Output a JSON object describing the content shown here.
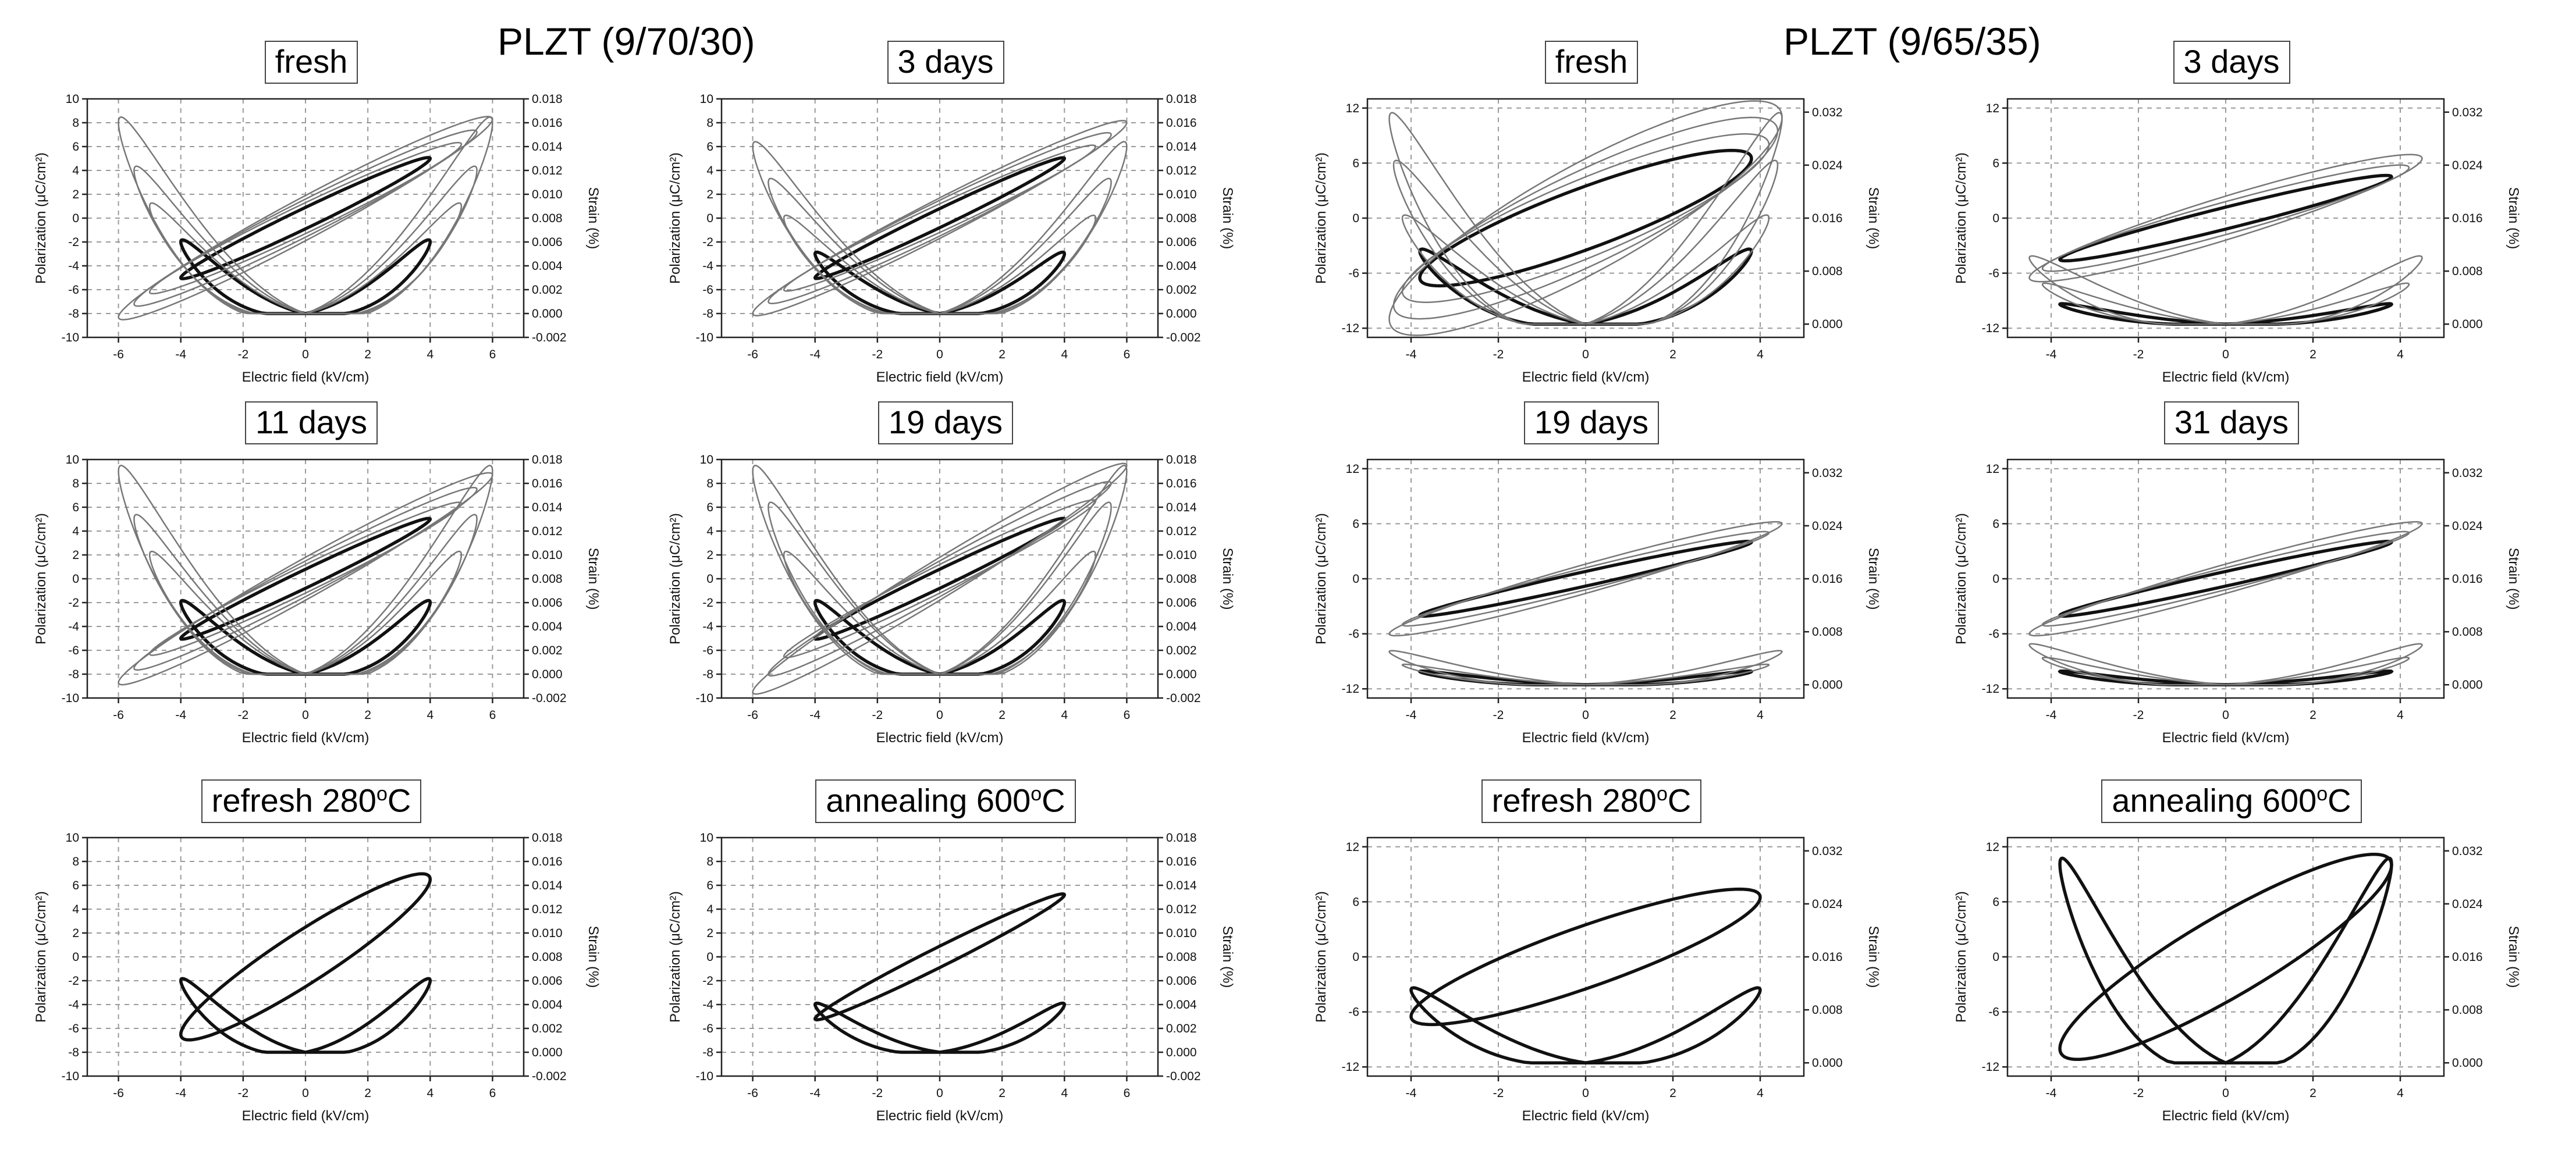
{
  "groups": {
    "left": "PLZT (9/70/30)",
    "right": "PLZT (9/65/35)"
  },
  "chart_data": [
    {
      "type": "line",
      "title": "fresh",
      "composition": "PLZT (9/70/30)",
      "xlabel": "Electric field (kV/cm)",
      "ylabel": "Polarization (μC/cm²)",
      "y2label": "Strain (%)",
      "xlim": [
        -7,
        7
      ],
      "ylim": [
        -10,
        10
      ],
      "y2lim": [
        -0.002,
        0.018
      ],
      "xticks": [
        "-6",
        "-4",
        "-2",
        "0",
        "2",
        "4",
        "6"
      ],
      "yticks": [
        "-10",
        "-8",
        "-6",
        "-4",
        "-2",
        "0",
        "2",
        "4",
        "6",
        "8",
        "10"
      ],
      "y2ticks": [
        "-0.002",
        "0.000",
        "0.002",
        "0.004",
        "0.006",
        "0.008",
        "0.010",
        "0.012",
        "0.014",
        "0.016",
        "0.018"
      ],
      "series": [
        {
          "name": "P-E loop",
          "weight": "bold",
          "Emax": 4,
          "Pmax": 5,
          "width": 0.9,
          "Smax": 0.006
        },
        {
          "name": "P-E loop",
          "weight": "light",
          "Emax": 5,
          "Pmax": 6.2,
          "width": 1.3,
          "Smax": 0.009
        },
        {
          "name": "P-E loop",
          "weight": "light",
          "Emax": 5.5,
          "Pmax": 7.2,
          "width": 1.6,
          "Smax": 0.012
        },
        {
          "name": "P-E loop",
          "weight": "light",
          "Emax": 6,
          "Pmax": 8.3,
          "width": 1.9,
          "Smax": 0.016
        }
      ]
    },
    {
      "type": "line",
      "title": "3 days",
      "composition": "PLZT (9/70/30)",
      "xlabel": "Electric field (kV/cm)",
      "ylabel": "Polarization (μC/cm²)",
      "y2label": "Strain (%)",
      "xlim": [
        -7,
        7
      ],
      "ylim": [
        -10,
        10
      ],
      "y2lim": [
        -0.002,
        0.018
      ],
      "xticks": [
        "-6",
        "-4",
        "-2",
        "0",
        "2",
        "4",
        "6"
      ],
      "yticks": [
        "-10",
        "-8",
        "-6",
        "-4",
        "-2",
        "0",
        "2",
        "4",
        "6",
        "8",
        "10"
      ],
      "y2ticks": [
        "-0.002",
        "0.000",
        "0.002",
        "0.004",
        "0.006",
        "0.008",
        "0.010",
        "0.012",
        "0.014",
        "0.016",
        "0.018"
      ],
      "series": [
        {
          "name": "P-E loop",
          "weight": "bold",
          "Emax": 4,
          "Pmax": 5,
          "width": 0.8,
          "Smax": 0.005
        },
        {
          "name": "P-E loop",
          "weight": "light",
          "Emax": 5,
          "Pmax": 6,
          "width": 1.2,
          "Smax": 0.008
        },
        {
          "name": "P-E loop",
          "weight": "light",
          "Emax": 5.5,
          "Pmax": 7,
          "width": 1.5,
          "Smax": 0.011
        },
        {
          "name": "P-E loop",
          "weight": "light",
          "Emax": 6,
          "Pmax": 8,
          "width": 1.7,
          "Smax": 0.014
        }
      ]
    },
    {
      "type": "line",
      "title": "fresh",
      "composition": "PLZT (9/65/35)",
      "xlabel": "Electric field (kV/cm)",
      "ylabel": "Polarization (μC/cm²)",
      "y2label": "Strain (%)",
      "xlim": [
        -5,
        5
      ],
      "ylim": [
        -13,
        13
      ],
      "y2lim": [
        -0.002,
        0.034
      ],
      "xticks": [
        "-4",
        "-2",
        "0",
        "2",
        "4"
      ],
      "yticks": [
        "-12",
        "-6",
        "0",
        "6",
        "12"
      ],
      "y2ticks": [
        "0.000",
        "0.008",
        "0.016",
        "0.024",
        "0.032"
      ],
      "series": [
        {
          "name": "P-E loop",
          "weight": "bold",
          "Emax": 3.8,
          "Pmax": 6.5,
          "width": 3.5,
          "Smax": 0.011
        },
        {
          "name": "P-E loop",
          "weight": "light",
          "Emax": 4.2,
          "Pmax": 8,
          "width": 4.5,
          "Smax": 0.016
        },
        {
          "name": "P-E loop",
          "weight": "light",
          "Emax": 4.4,
          "Pmax": 9.5,
          "width": 5.5,
          "Smax": 0.024
        },
        {
          "name": "P-E loop",
          "weight": "light",
          "Emax": 4.5,
          "Pmax": 11,
          "width": 6.5,
          "Smax": 0.031
        }
      ]
    },
    {
      "type": "line",
      "title": "3 days",
      "composition": "PLZT (9/65/35)",
      "xlabel": "Electric field (kV/cm)",
      "ylabel": "Polarization (μC/cm²)",
      "y2label": "Strain (%)",
      "xlim": [
        -5,
        5
      ],
      "ylim": [
        -13,
        13
      ],
      "y2lim": [
        -0.002,
        0.034
      ],
      "xticks": [
        "-4",
        "-2",
        "0",
        "2",
        "4"
      ],
      "yticks": [
        "-12",
        "-6",
        "0",
        "6",
        "12"
      ],
      "y2ticks": [
        "0.000",
        "0.008",
        "0.016",
        "0.024",
        "0.032"
      ],
      "series": [
        {
          "name": "P-E loop",
          "weight": "bold",
          "Emax": 3.8,
          "Pmax": 4.5,
          "width": 1.2,
          "Smax": 0.003
        },
        {
          "name": "P-E loop",
          "weight": "light",
          "Emax": 4.2,
          "Pmax": 5.5,
          "width": 1.8,
          "Smax": 0.006
        },
        {
          "name": "P-E loop",
          "weight": "light",
          "Emax": 4.5,
          "Pmax": 6.5,
          "width": 2.4,
          "Smax": 0.01
        }
      ]
    },
    {
      "type": "line",
      "title": "11 days",
      "composition": "PLZT (9/70/30)",
      "xlabel": "Electric field (kV/cm)",
      "ylabel": "Polarization (μC/cm²)",
      "y2label": "Strain (%)",
      "xlim": [
        -7,
        7
      ],
      "ylim": [
        -10,
        10
      ],
      "y2lim": [
        -0.002,
        0.018
      ],
      "xticks": [
        "-6",
        "-4",
        "-2",
        "0",
        "2",
        "4",
        "6"
      ],
      "yticks": [
        "-10",
        "-8",
        "-6",
        "-4",
        "-2",
        "0",
        "2",
        "4",
        "6",
        "8",
        "10"
      ],
      "y2ticks": [
        "-0.002",
        "0.000",
        "0.002",
        "0.004",
        "0.006",
        "0.008",
        "0.010",
        "0.012",
        "0.014",
        "0.016",
        "0.018"
      ],
      "series": [
        {
          "name": "P-E loop",
          "weight": "bold",
          "Emax": 4,
          "Pmax": 5,
          "width": 0.8,
          "Smax": 0.006
        },
        {
          "name": "P-E loop",
          "weight": "light",
          "Emax": 5,
          "Pmax": 6.3,
          "width": 1.2,
          "Smax": 0.01
        },
        {
          "name": "P-E loop",
          "weight": "light",
          "Emax": 5.5,
          "Pmax": 7.5,
          "width": 1.5,
          "Smax": 0.013
        },
        {
          "name": "P-E loop",
          "weight": "light",
          "Emax": 6,
          "Pmax": 8.7,
          "width": 1.8,
          "Smax": 0.017
        }
      ]
    },
    {
      "type": "line",
      "title": "19 days",
      "composition": "PLZT (9/70/30)",
      "xlabel": "Electric field (kV/cm)",
      "ylabel": "Polarization (μC/cm²)",
      "y2label": "Strain (%)",
      "xlim": [
        -7,
        7
      ],
      "ylim": [
        -10,
        10
      ],
      "y2lim": [
        -0.002,
        0.018
      ],
      "xticks": [
        "-6",
        "-4",
        "-2",
        "0",
        "2",
        "4",
        "6"
      ],
      "yticks": [
        "-10",
        "-8",
        "-6",
        "-4",
        "-2",
        "0",
        "2",
        "4",
        "6",
        "8",
        "10"
      ],
      "y2ticks": [
        "-0.002",
        "0.000",
        "0.002",
        "0.004",
        "0.006",
        "0.008",
        "0.010",
        "0.012",
        "0.014",
        "0.016",
        "0.018"
      ],
      "series": [
        {
          "name": "P-E loop",
          "weight": "bold",
          "Emax": 4,
          "Pmax": 5,
          "width": 0.8,
          "Smax": 0.006
        },
        {
          "name": "P-E loop",
          "weight": "light",
          "Emax": 5,
          "Pmax": 6.5,
          "width": 1.2,
          "Smax": 0.01
        },
        {
          "name": "P-E loop",
          "weight": "light",
          "Emax": 5.5,
          "Pmax": 8,
          "width": 1.5,
          "Smax": 0.014
        },
        {
          "name": "P-E loop",
          "weight": "light",
          "Emax": 6,
          "Pmax": 9.5,
          "width": 1.8,
          "Smax": 0.017
        }
      ]
    },
    {
      "type": "line",
      "title": "19 days",
      "composition": "PLZT (9/65/35)",
      "xlabel": "Electric field (kV/cm)",
      "ylabel": "Polarization (μC/cm²)",
      "y2label": "Strain (%)",
      "xlim": [
        -5,
        5
      ],
      "ylim": [
        -13,
        13
      ],
      "y2lim": [
        -0.002,
        0.034
      ],
      "xticks": [
        "-4",
        "-2",
        "0",
        "2",
        "4"
      ],
      "yticks": [
        "-12",
        "-6",
        "0",
        "6",
        "12"
      ],
      "y2ticks": [
        "0.000",
        "0.008",
        "0.016",
        "0.024",
        "0.032"
      ],
      "series": [
        {
          "name": "P-E loop",
          "weight": "bold",
          "Emax": 3.8,
          "Pmax": 4,
          "width": 0.8,
          "Smax": 0.002
        },
        {
          "name": "P-E loop",
          "weight": "light",
          "Emax": 4.2,
          "Pmax": 5,
          "width": 1.2,
          "Smax": 0.003
        },
        {
          "name": "P-E loop",
          "weight": "light",
          "Emax": 4.5,
          "Pmax": 6,
          "width": 1.6,
          "Smax": 0.005
        }
      ]
    },
    {
      "type": "line",
      "title": "31 days",
      "composition": "PLZT (9/65/35)",
      "xlabel": "Electric field (kV/cm)",
      "ylabel": "Polarization (μC/cm²)",
      "y2label": "Strain (%)",
      "xlim": [
        -5,
        5
      ],
      "ylim": [
        -13,
        13
      ],
      "y2lim": [
        -0.002,
        0.034
      ],
      "xticks": [
        "-4",
        "-2",
        "0",
        "2",
        "4"
      ],
      "yticks": [
        "-12",
        "-6",
        "0",
        "6",
        "12"
      ],
      "y2ticks": [
        "0.000",
        "0.008",
        "0.016",
        "0.024",
        "0.032"
      ],
      "series": [
        {
          "name": "P-E loop",
          "weight": "bold",
          "Emax": 3.8,
          "Pmax": 4,
          "width": 0.8,
          "Smax": 0.002
        },
        {
          "name": "P-E loop",
          "weight": "light",
          "Emax": 4.2,
          "Pmax": 5,
          "width": 1.2,
          "Smax": 0.004
        },
        {
          "name": "P-E loop",
          "weight": "light",
          "Emax": 4.5,
          "Pmax": 6,
          "width": 1.6,
          "Smax": 0.006
        }
      ]
    },
    {
      "type": "line",
      "title": "refresh 280°C",
      "title_main": "refresh 280",
      "title_sup": "o",
      "title_unit": "C",
      "composition": "PLZT (9/70/30)",
      "xlabel": "Electric field (kV/cm)",
      "ylabel": "Polarization (μC/cm²)",
      "y2label": "Strain (%)",
      "xlim": [
        -7,
        7
      ],
      "ylim": [
        -10,
        10
      ],
      "y2lim": [
        -0.002,
        0.018
      ],
      "xticks": [
        "-6",
        "-4",
        "-2",
        "0",
        "2",
        "4",
        "6"
      ],
      "yticks": [
        "-10",
        "-8",
        "-6",
        "-4",
        "-2",
        "0",
        "2",
        "4",
        "6",
        "8",
        "10"
      ],
      "y2ticks": [
        "-0.002",
        "0.000",
        "0.002",
        "0.004",
        "0.006",
        "0.008",
        "0.010",
        "0.012",
        "0.014",
        "0.016",
        "0.018"
      ],
      "series": [
        {
          "name": "P-E loop",
          "weight": "bold",
          "Emax": 4,
          "Pmax": 6.5,
          "width": 2.5,
          "Smax": 0.006
        }
      ]
    },
    {
      "type": "line",
      "title": "annealing 600°C",
      "title_main": "annealing 600",
      "title_sup": "o",
      "title_unit": "C",
      "composition": "PLZT (9/70/30)",
      "xlabel": "Electric field (kV/cm)",
      "ylabel": "Polarization (μC/cm²)",
      "y2label": "Strain (%)",
      "xlim": [
        -7,
        7
      ],
      "ylim": [
        -10,
        10
      ],
      "y2lim": [
        -0.002,
        0.018
      ],
      "xticks": [
        "-6",
        "-4",
        "-2",
        "0",
        "2",
        "4",
        "6"
      ],
      "yticks": [
        "-10",
        "-8",
        "-6",
        "-4",
        "-2",
        "0",
        "2",
        "4",
        "6",
        "8",
        "10"
      ],
      "y2ticks": [
        "-0.002",
        "0.000",
        "0.002",
        "0.004",
        "0.006",
        "0.008",
        "0.010",
        "0.012",
        "0.014",
        "0.016",
        "0.018"
      ],
      "series": [
        {
          "name": "P-E loop",
          "weight": "bold",
          "Emax": 4,
          "Pmax": 5.2,
          "width": 0.9,
          "Smax": 0.004
        }
      ]
    },
    {
      "type": "line",
      "title": "refresh 280°C",
      "title_main": "refresh 280",
      "title_sup": "o",
      "title_unit": "C",
      "composition": "PLZT (9/65/35)",
      "xlabel": "Electric field (kV/cm)",
      "ylabel": "Polarization (μC/cm²)",
      "y2label": "Strain (%)",
      "xlim": [
        -5,
        5
      ],
      "ylim": [
        -13,
        13
      ],
      "y2lim": [
        -0.002,
        0.034
      ],
      "xticks": [
        "-4",
        "-2",
        "0",
        "2",
        "4"
      ],
      "yticks": [
        "-12",
        "-6",
        "0",
        "6",
        "12"
      ],
      "y2ticks": [
        "0.000",
        "0.008",
        "0.016",
        "0.024",
        "0.032"
      ],
      "series": [
        {
          "name": "P-E loop",
          "weight": "bold",
          "Emax": 4,
          "Pmax": 6.5,
          "width": 3.5,
          "Smax": 0.011
        }
      ]
    },
    {
      "type": "line",
      "title": "annealing 600°C",
      "title_main": "annealing 600",
      "title_sup": "o",
      "title_unit": "C",
      "composition": "PLZT (9/65/35)",
      "xlabel": "Electric field (kV/cm)",
      "ylabel": "Polarization (μC/cm²)",
      "y2label": "Strain (%)",
      "xlim": [
        -5,
        5
      ],
      "ylim": [
        -13,
        13
      ],
      "y2lim": [
        -0.002,
        0.034
      ],
      "xticks": [
        "-4",
        "-2",
        "0",
        "2",
        "4"
      ],
      "yticks": [
        "-12",
        "-6",
        "0",
        "6",
        "12"
      ],
      "y2ticks": [
        "0.000",
        "0.008",
        "0.016",
        "0.024",
        "0.032"
      ],
      "series": [
        {
          "name": "P-E loop",
          "weight": "bold",
          "Emax": 3.8,
          "Pmax": 10,
          "width": 5,
          "Smax": 0.03
        }
      ]
    }
  ]
}
